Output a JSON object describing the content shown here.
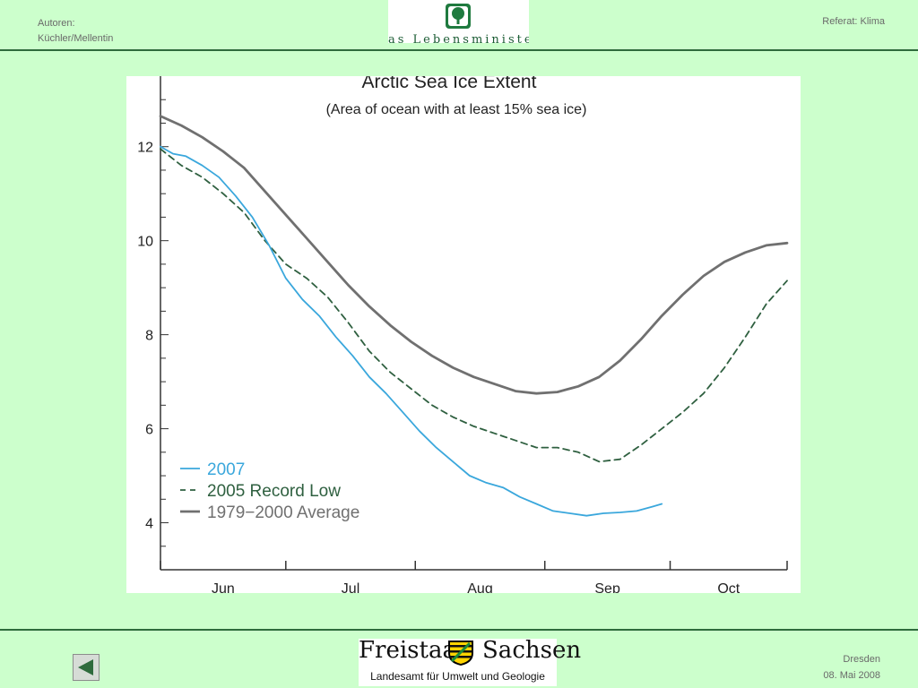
{
  "header": {
    "authors_label": "Autoren:",
    "authors_names": "Küchler/Mellentin",
    "topic": "Referat: Klima",
    "top_logo_text": "as Lebensministerium"
  },
  "footer": {
    "state_left": "Freistaat",
    "state_right": "Sachsen",
    "agency": "Landesamt für Umwelt und Geologie",
    "city": "Dresden",
    "date": "08. Mai 2008"
  },
  "colors": {
    "background": "#ccffcc",
    "rule": "#2e6b3c",
    "series_2007": "#3aa7dc",
    "series_2005": "#2f6040",
    "series_avg": "#707070"
  },
  "icons": {
    "back": "triangle-left-icon",
    "top_logo": "tree-emblem-icon",
    "footer_logo": "saxony-coat-of-arms-icon"
  },
  "chart_data": {
    "type": "line",
    "title": "Arctic Sea Ice Extent",
    "subtitle": "(Area of ocean with at least 15% sea ice)",
    "xlabel": "",
    "ylabel": "",
    "x_unit": "days since June 1",
    "xlim": [
      0,
      150
    ],
    "ylim": [
      3,
      13.5
    ],
    "yticks": [
      4,
      6,
      8,
      10,
      12
    ],
    "months": [
      {
        "label": "Jun",
        "start": 0
      },
      {
        "label": "Jul",
        "start": 30
      },
      {
        "label": "Aug",
        "start": 61
      },
      {
        "label": "Sep",
        "start": 92
      },
      {
        "label": "Oct",
        "start": 122
      }
    ],
    "legend_position": "bottom-left",
    "grid": false,
    "series": [
      {
        "name": "2007",
        "style": "solid",
        "x": [
          0,
          3,
          6,
          10,
          14,
          18,
          22,
          26,
          30,
          34,
          38,
          42,
          46,
          50,
          54,
          58,
          62,
          66,
          70,
          74,
          78,
          82,
          86,
          90,
          94,
          98,
          102,
          106,
          110,
          114,
          118,
          120
        ],
        "values": [
          12.0,
          11.85,
          11.8,
          11.6,
          11.35,
          10.95,
          10.5,
          9.9,
          9.2,
          8.75,
          8.4,
          7.95,
          7.55,
          7.1,
          6.75,
          6.35,
          5.95,
          5.6,
          5.3,
          5.0,
          4.85,
          4.75,
          4.55,
          4.4,
          4.25,
          4.2,
          4.15,
          4.2,
          4.22,
          4.25,
          4.35,
          4.4
        ]
      },
      {
        "name": "2005 Record Low",
        "style": "dashed",
        "x": [
          0,
          5,
          10,
          15,
          20,
          25,
          30,
          35,
          40,
          45,
          50,
          55,
          60,
          65,
          70,
          75,
          80,
          85,
          90,
          95,
          100,
          105,
          110,
          115,
          120,
          125,
          130,
          135,
          140,
          145,
          150
        ],
        "values": [
          11.95,
          11.6,
          11.35,
          11.0,
          10.6,
          10.0,
          9.5,
          9.2,
          8.8,
          8.25,
          7.65,
          7.2,
          6.85,
          6.5,
          6.25,
          6.05,
          5.9,
          5.75,
          5.6,
          5.6,
          5.5,
          5.3,
          5.35,
          5.65,
          6.0,
          6.35,
          6.75,
          7.3,
          7.95,
          8.65,
          9.15
        ]
      },
      {
        "name": "1979−2000 Average",
        "style": "solid",
        "x": [
          0,
          5,
          10,
          15,
          20,
          25,
          30,
          35,
          40,
          45,
          50,
          55,
          60,
          65,
          70,
          75,
          80,
          85,
          90,
          95,
          100,
          105,
          110,
          115,
          120,
          125,
          130,
          135,
          140,
          145,
          150
        ],
        "values": [
          12.65,
          12.45,
          12.2,
          11.9,
          11.55,
          11.05,
          10.55,
          10.05,
          9.55,
          9.05,
          8.6,
          8.2,
          7.85,
          7.55,
          7.3,
          7.1,
          6.95,
          6.8,
          6.75,
          6.78,
          6.9,
          7.1,
          7.45,
          7.9,
          8.4,
          8.85,
          9.25,
          9.55,
          9.75,
          9.9,
          9.95
        ]
      }
    ]
  }
}
